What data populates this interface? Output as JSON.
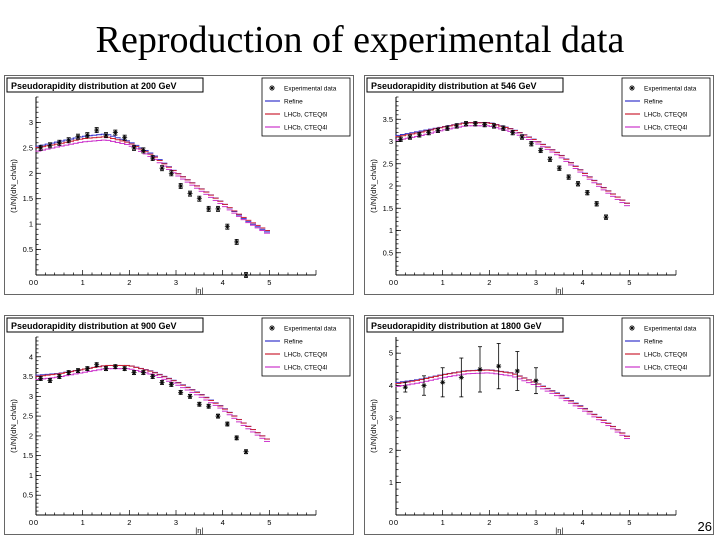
{
  "slide": {
    "title": "Reproduction of experimental data",
    "page_number": "26"
  },
  "colors": {
    "experimental": "#000000",
    "refine": "#3333cc",
    "lhcb_cteq6l": "#cc2233",
    "lhcb_cteq4l": "#cc33cc"
  },
  "chart_data": [
    {
      "type": "scatter",
      "title": "Pseudorapidity distribution at 200 GeV",
      "xlabel": "|η|",
      "ylabel": "(1/N)(dN_ch/dη)",
      "xlim": [
        0,
        6
      ],
      "ylim": [
        0,
        3.5
      ],
      "xticks": [
        0,
        1,
        2,
        3,
        4,
        5
      ],
      "yticks": [
        0.5,
        1,
        1.5,
        2,
        2.5,
        3
      ],
      "legend": [
        "Experimental data",
        "Refine",
        "LHCb, CTEQ6l",
        "LHCb, CTEQ4l"
      ],
      "series": [
        {
          "name": "Experimental data",
          "x": [
            0.1,
            0.3,
            0.5,
            0.7,
            0.9,
            1.1,
            1.3,
            1.5,
            1.7,
            1.9,
            2.1,
            2.3,
            2.5,
            2.7,
            2.9,
            3.1,
            3.3,
            3.5,
            3.7,
            3.9,
            4.1,
            4.3,
            4.5
          ],
          "y": [
            2.5,
            2.55,
            2.6,
            2.65,
            2.72,
            2.75,
            2.85,
            2.75,
            2.8,
            2.7,
            2.5,
            2.45,
            2.3,
            2.1,
            2.0,
            1.75,
            1.6,
            1.5,
            1.3,
            1.3,
            0.95,
            0.65,
            0.0
          ]
        },
        {
          "name": "Refine",
          "x": [
            0,
            0.5,
            1,
            1.5,
            2,
            2.5,
            3,
            3.5,
            4,
            4.5,
            5
          ],
          "y": [
            2.5,
            2.6,
            2.7,
            2.75,
            2.6,
            2.35,
            2.0,
            1.7,
            1.4,
            1.05,
            0.8
          ]
        },
        {
          "name": "LHCb, CTEQ6l",
          "x": [
            0,
            0.5,
            1,
            1.5,
            2,
            2.5,
            3,
            3.5,
            4,
            4.5,
            5
          ],
          "y": [
            2.5,
            2.58,
            2.68,
            2.72,
            2.6,
            2.35,
            2.02,
            1.72,
            1.42,
            1.1,
            0.85
          ]
        },
        {
          "name": "LHCb, CTEQ4l",
          "x": [
            0,
            0.5,
            1,
            1.5,
            2,
            2.5,
            3,
            3.5,
            4,
            4.5,
            5
          ],
          "y": [
            2.45,
            2.55,
            2.64,
            2.68,
            2.58,
            2.33,
            2.0,
            1.7,
            1.4,
            1.08,
            0.82
          ]
        }
      ]
    },
    {
      "type": "scatter",
      "title": "Pseudorapidity distribution at 546 GeV",
      "xlabel": "|η|",
      "ylabel": "(1/N)(dN_ch/dη)",
      "xlim": [
        0,
        6
      ],
      "ylim": [
        0,
        4
      ],
      "xticks": [
        0,
        1,
        2,
        3,
        4,
        5
      ],
      "yticks": [
        0.5,
        1,
        1.5,
        2,
        2.5,
        3,
        3.5
      ],
      "legend": [
        "Experimental data",
        "Refine",
        "LHCb, CTEQ6l",
        "LHCb, CTEQ4l"
      ],
      "series": [
        {
          "name": "Experimental data",
          "x": [
            0.1,
            0.3,
            0.5,
            0.7,
            0.9,
            1.1,
            1.3,
            1.5,
            1.7,
            1.9,
            2.1,
            2.3,
            2.5,
            2.7,
            2.9,
            3.1,
            3.3,
            3.5,
            3.7,
            3.9,
            4.1,
            4.3,
            4.5
          ],
          "y": [
            3.05,
            3.1,
            3.15,
            3.2,
            3.25,
            3.3,
            3.35,
            3.4,
            3.4,
            3.38,
            3.35,
            3.3,
            3.2,
            3.1,
            2.95,
            2.8,
            2.6,
            2.4,
            2.2,
            2.05,
            1.85,
            1.6,
            1.3
          ]
        },
        {
          "name": "Refine",
          "x": [
            0,
            0.5,
            1,
            1.5,
            2,
            2.5,
            3,
            3.5,
            4,
            4.5,
            5
          ],
          "y": [
            3.1,
            3.2,
            3.3,
            3.4,
            3.4,
            3.25,
            3.0,
            2.7,
            2.3,
            1.9,
            1.55
          ]
        },
        {
          "name": "LHCb, CTEQ6l",
          "x": [
            0,
            0.5,
            1,
            1.5,
            2,
            2.5,
            3,
            3.5,
            4,
            4.5,
            5
          ],
          "y": [
            3.1,
            3.2,
            3.32,
            3.42,
            3.42,
            3.27,
            3.02,
            2.72,
            2.32,
            1.92,
            1.58
          ]
        },
        {
          "name": "LHCb, CTEQ4l",
          "x": [
            0,
            0.5,
            1,
            1.5,
            2,
            2.5,
            3,
            3.5,
            4,
            4.5,
            5
          ],
          "y": [
            3.05,
            3.15,
            3.28,
            3.38,
            3.38,
            3.24,
            3.0,
            2.7,
            2.3,
            1.9,
            1.55
          ]
        }
      ]
    },
    {
      "type": "scatter",
      "title": "Pseudorapidity distribution at 900 GeV",
      "xlabel": "|η|",
      "ylabel": "(1/N)(dN_ch/dη)",
      "xlim": [
        0,
        6
      ],
      "ylim": [
        0,
        4.5
      ],
      "xticks": [
        0,
        1,
        2,
        3,
        4,
        5
      ],
      "yticks": [
        0.5,
        1,
        1.5,
        2,
        2.5,
        3,
        3.5,
        4
      ],
      "legend": [
        "Experimental data",
        "Refine",
        "LHCb, CTEQ6l",
        "LHCb, CTEQ4l"
      ],
      "series": [
        {
          "name": "Experimental data",
          "x": [
            0.1,
            0.3,
            0.5,
            0.7,
            0.9,
            1.1,
            1.3,
            1.5,
            1.7,
            1.9,
            2.1,
            2.3,
            2.5,
            2.7,
            2.9,
            3.1,
            3.3,
            3.5,
            3.7,
            3.9,
            4.1,
            4.3,
            4.5
          ],
          "y": [
            3.45,
            3.4,
            3.5,
            3.6,
            3.65,
            3.7,
            3.8,
            3.7,
            3.75,
            3.7,
            3.6,
            3.6,
            3.5,
            3.35,
            3.3,
            3.1,
            3.0,
            2.8,
            2.75,
            2.5,
            2.3,
            1.95,
            1.6
          ]
        },
        {
          "name": "Refine",
          "x": [
            0,
            0.5,
            1,
            1.5,
            2,
            2.5,
            3,
            3.5,
            4,
            4.5,
            5
          ],
          "y": [
            3.5,
            3.55,
            3.65,
            3.75,
            3.75,
            3.6,
            3.35,
            3.05,
            2.7,
            2.25,
            1.85
          ]
        },
        {
          "name": "LHCb, CTEQ6l",
          "x": [
            0,
            0.5,
            1,
            1.5,
            2,
            2.5,
            3,
            3.5,
            4,
            4.5,
            5
          ],
          "y": [
            3.5,
            3.57,
            3.68,
            3.78,
            3.78,
            3.62,
            3.37,
            3.07,
            2.72,
            2.28,
            1.88
          ]
        },
        {
          "name": "LHCb, CTEQ4l",
          "x": [
            0,
            0.5,
            1,
            1.5,
            2,
            2.5,
            3,
            3.5,
            4,
            4.5,
            5
          ],
          "y": [
            3.45,
            3.52,
            3.63,
            3.73,
            3.73,
            3.58,
            3.34,
            3.04,
            2.7,
            2.25,
            1.85
          ]
        }
      ]
    },
    {
      "type": "scatter",
      "title": "Pseudorapidity distribution at 1800 GeV",
      "xlabel": "|η|",
      "ylabel": "(1/N)(dN_ch/dη)",
      "xlim": [
        0,
        6
      ],
      "ylim": [
        0,
        5.5
      ],
      "xticks": [
        0,
        1,
        2,
        3,
        4,
        5
      ],
      "yticks": [
        1,
        2,
        3,
        4,
        5
      ],
      "legend": [
        "Experimental data",
        "Refine",
        "LHCb, CTEQ6l",
        "LHCb, CTEQ4l"
      ],
      "series": [
        {
          "name": "Experimental data",
          "x": [
            0.2,
            0.6,
            1.0,
            1.4,
            1.8,
            2.2,
            2.6,
            3.0
          ],
          "y": [
            3.95,
            4.0,
            4.1,
            4.25,
            4.5,
            4.6,
            4.45,
            4.15
          ],
          "yerr": [
            0.15,
            0.3,
            0.45,
            0.6,
            0.7,
            0.7,
            0.6,
            0.4
          ]
        },
        {
          "name": "Refine",
          "x": [
            0,
            0.5,
            1,
            1.5,
            2,
            2.5,
            3,
            3.5,
            4,
            4.5,
            5
          ],
          "y": [
            4.05,
            4.15,
            4.3,
            4.42,
            4.45,
            4.35,
            4.05,
            3.7,
            3.3,
            2.85,
            2.35
          ]
        },
        {
          "name": "LHCb, CTEQ6l",
          "x": [
            0,
            0.5,
            1,
            1.5,
            2,
            2.5,
            3,
            3.5,
            4,
            4.5,
            5
          ],
          "y": [
            4.05,
            4.17,
            4.33,
            4.45,
            4.48,
            4.38,
            4.08,
            3.72,
            3.32,
            2.88,
            2.38
          ]
        },
        {
          "name": "LHCb, CTEQ4l",
          "x": [
            0,
            0.5,
            1,
            1.5,
            2,
            2.5,
            3,
            3.5,
            4,
            4.5,
            5
          ],
          "y": [
            4.0,
            4.12,
            4.28,
            4.4,
            4.43,
            4.33,
            4.04,
            3.69,
            3.29,
            2.85,
            2.35
          ]
        }
      ]
    }
  ]
}
